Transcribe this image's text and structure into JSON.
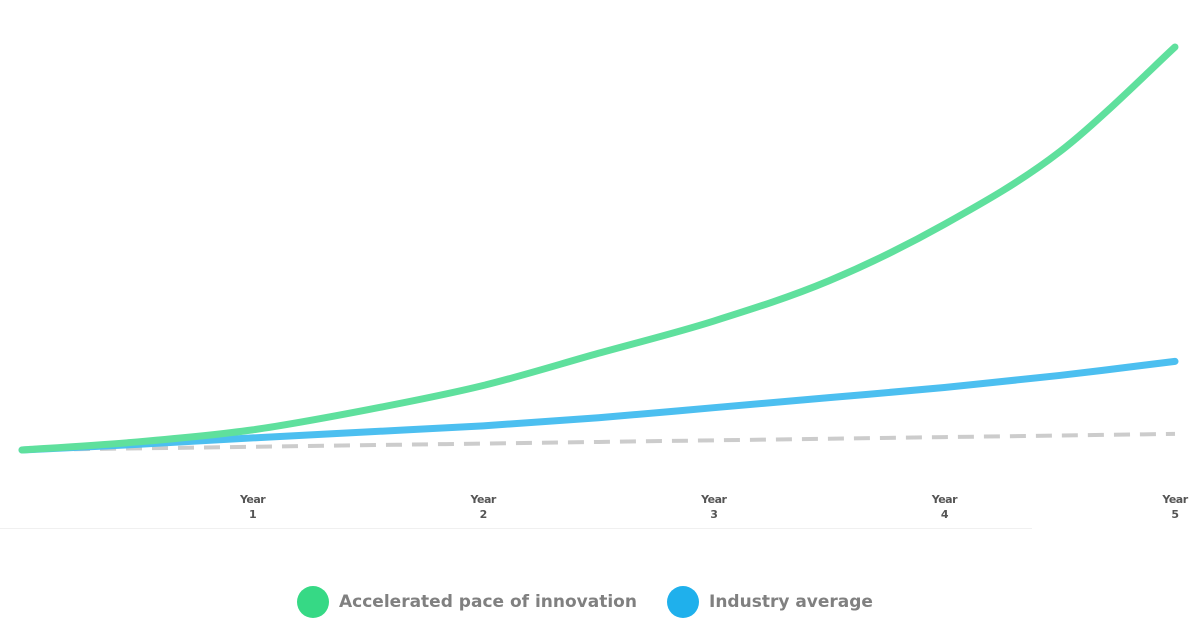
{
  "chart_data": {
    "type": "line",
    "x": [
      0,
      0.5,
      1,
      1.5,
      2,
      2.5,
      3,
      3.5,
      4,
      4.5,
      5
    ],
    "xlim": [
      0,
      5
    ],
    "xticks": [
      {
        "value": 1,
        "label": "Year 1"
      },
      {
        "value": 2,
        "label": "Year 2"
      },
      {
        "value": 3,
        "label": "Year 3"
      },
      {
        "value": 4,
        "label": "Year 4"
      },
      {
        "value": 5,
        "label": "Year 5"
      }
    ],
    "ylim": [
      0,
      100
    ],
    "series": [
      {
        "name": "Accelerated pace of innovation",
        "color": "#5fe09d",
        "legend_color": "#36d985",
        "values": [
          0,
          2,
          5,
          10,
          16,
          24,
          32,
          42,
          56,
          74,
          100
        ]
      },
      {
        "name": "Industry average",
        "color": "#4cbff0",
        "legend_color": "#1fb0ec",
        "values": [
          0,
          1.4,
          3,
          4.5,
          6,
          8,
          10.5,
          13,
          15.5,
          18.5,
          22
        ]
      },
      {
        "color": "#cccccc",
        "dashed": true,
        "values": [
          0,
          0.4,
          0.8,
          1.2,
          1.6,
          2,
          2.4,
          2.8,
          3.2,
          3.6,
          4
        ]
      }
    ]
  }
}
